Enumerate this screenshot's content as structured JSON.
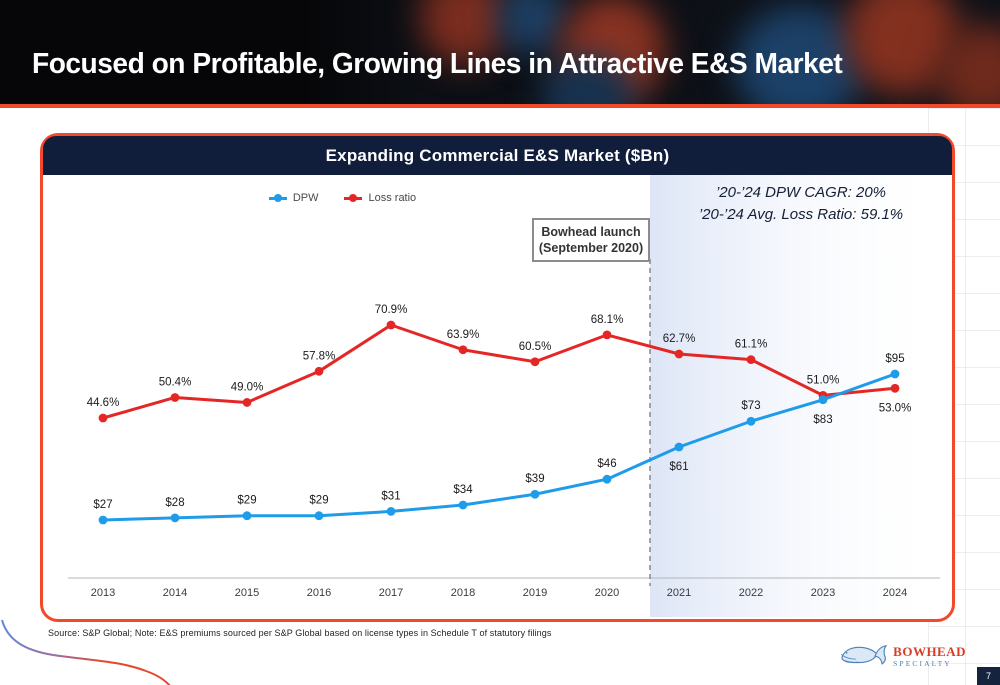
{
  "page": {
    "title": "Focused on Profitable, Growing Lines in Attractive E&S Market",
    "page_number": "7",
    "source_note": "Source: S&P Global; Note: E&S premiums sourced per S&P Global based on license types in Schedule T of statutory filings",
    "logo": {
      "name": "BOWHEAD",
      "sub": "SPECIALTY"
    }
  },
  "colors": {
    "accent_orange": "#f1492a",
    "navy": "#101e3c",
    "dpw_blue": "#1f9ce9",
    "loss_red": "#e42725",
    "highlight_fill": "#dbe4f6"
  },
  "chart_data": {
    "type": "line",
    "title": "Expanding Commercial E&S Market ($Bn)",
    "categories": [
      "2013",
      "2014",
      "2015",
      "2016",
      "2017",
      "2018",
      "2019",
      "2020",
      "2021",
      "2022",
      "2023",
      "2024"
    ],
    "series": [
      {
        "name": "DPW",
        "color": "#1f9ce9",
        "axis": "dollars_bn",
        "values": [
          27,
          28,
          29,
          29,
          31,
          34,
          39,
          46,
          61,
          73,
          83,
          95
        ],
        "labels": [
          "$27",
          "$28",
          "$29",
          "$29",
          "$31",
          "$34",
          "$39",
          "$46",
          "$61",
          "$73",
          "$83",
          "$95"
        ],
        "label_side": [
          "above",
          "above",
          "above",
          "above",
          "above",
          "above",
          "above",
          "above",
          "below",
          "above",
          "below",
          "above"
        ]
      },
      {
        "name": "Loss ratio",
        "color": "#e42725",
        "axis": "percent",
        "values": [
          44.6,
          50.4,
          49.0,
          57.8,
          70.9,
          63.9,
          60.5,
          68.1,
          62.7,
          61.1,
          51.0,
          53.0
        ],
        "labels": [
          "44.6%",
          "50.4%",
          "49.0%",
          "57.8%",
          "70.9%",
          "63.9%",
          "60.5%",
          "68.1%",
          "62.7%",
          "61.1%",
          "51.0%",
          "53.0%"
        ],
        "label_side": [
          "above",
          "above",
          "above",
          "above",
          "above",
          "above",
          "above",
          "above",
          "above",
          "above",
          "above",
          "below"
        ]
      }
    ],
    "annotation": {
      "line1": "Bowhead launch",
      "line2": "(September 2020)"
    },
    "stats": {
      "line1": "’20-’24 DPW CAGR: 20%",
      "line2": "’20-’24 Avg. Loss Ratio: 59.1%"
    },
    "highlight": {
      "dashed_line_between": [
        "2020",
        "2021"
      ],
      "shaded_from": "2021",
      "shaded_to": "2024"
    },
    "legend_position": "top-center",
    "grid": false,
    "y_axis_visible": false
  }
}
